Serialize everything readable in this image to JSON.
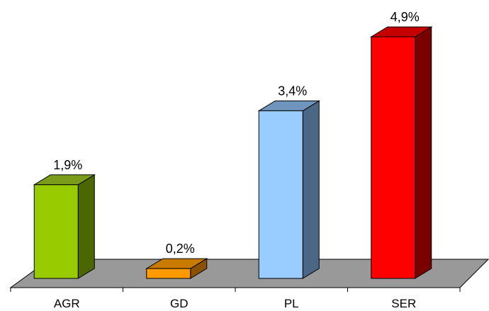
{
  "chart_data": {
    "type": "bar",
    "title": "",
    "xlabel": "",
    "ylabel": "",
    "categories": [
      "AGR",
      "GD",
      "PL",
      "SER"
    ],
    "values": [
      1.9,
      0.2,
      3.4,
      4.9
    ],
    "value_labels": [
      "1,9%",
      "0,2%",
      "3,4%",
      "4,9%"
    ],
    "unit": "%",
    "ylim": [
      0,
      4.9
    ],
    "grid": false,
    "legend": "none",
    "style": "3d-column",
    "colors": [
      {
        "front": "#99cc00",
        "top": "#7a9c1a",
        "side": "#4c6600"
      },
      {
        "front": "#ff9900",
        "top": "#c97a00",
        "side": "#8a5200"
      },
      {
        "front": "#99ccff",
        "top": "#6f95bd",
        "side": "#4b6785"
      },
      {
        "front": "#ff0000",
        "top": "#c40000",
        "side": "#7a0000"
      }
    ],
    "floor_color": "#999999"
  }
}
